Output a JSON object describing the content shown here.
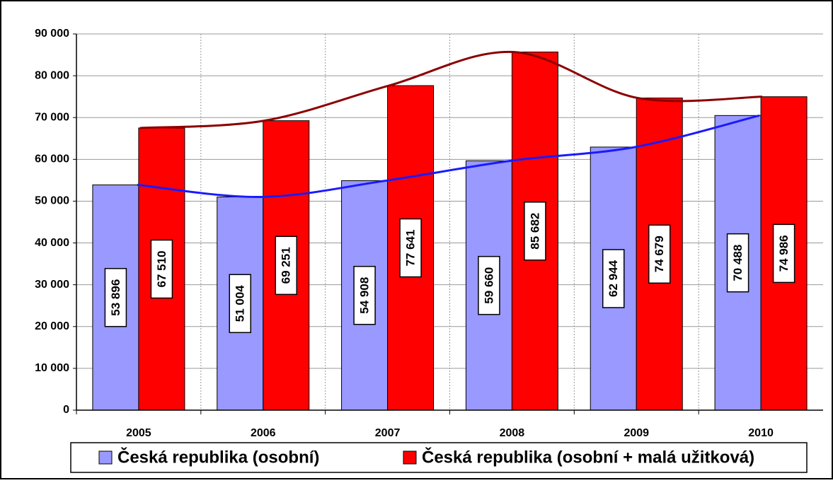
{
  "chart_data": {
    "type": "bar",
    "categories": [
      "2005",
      "2006",
      "2007",
      "2008",
      "2009",
      "2010"
    ],
    "series": [
      {
        "name": "Česká republika (osobní)",
        "color": "#9999ff",
        "line_color": "#1a1aff",
        "values": [
          53896,
          51004,
          54908,
          59660,
          62944,
          70488
        ],
        "value_labels": [
          "53 896",
          "51 004",
          "54 908",
          "59 660",
          "62 944",
          "70 488"
        ]
      },
      {
        "name": "Česká republika (osobní + malá užitková)",
        "color": "#ff0000",
        "line_color": "#8b0000",
        "values": [
          67510,
          69251,
          77641,
          85682,
          74679,
          74986
        ],
        "value_labels": [
          "67 510",
          "69 251",
          "77 641",
          "85 682",
          "74 679",
          "74 986"
        ]
      }
    ],
    "ylim": [
      0,
      90000
    ],
    "yticks": [
      0,
      {
        "value": 10000,
        "label": "10 000"
      },
      {
        "value": 20000,
        "label": "20 000"
      },
      {
        "value": 30000,
        "label": "30 000"
      },
      {
        "value": 40000,
        "label": "40 000"
      },
      {
        "value": 50000,
        "label": "50 000"
      },
      {
        "value": 60000,
        "label": "60 000"
      },
      {
        "value": 70000,
        "label": "70 000"
      },
      {
        "value": 80000,
        "label": "80 000"
      },
      {
        "value": 90000,
        "label": "90 000"
      }
    ],
    "grid": true,
    "smooth_lines": true,
    "legend": "bottom"
  }
}
